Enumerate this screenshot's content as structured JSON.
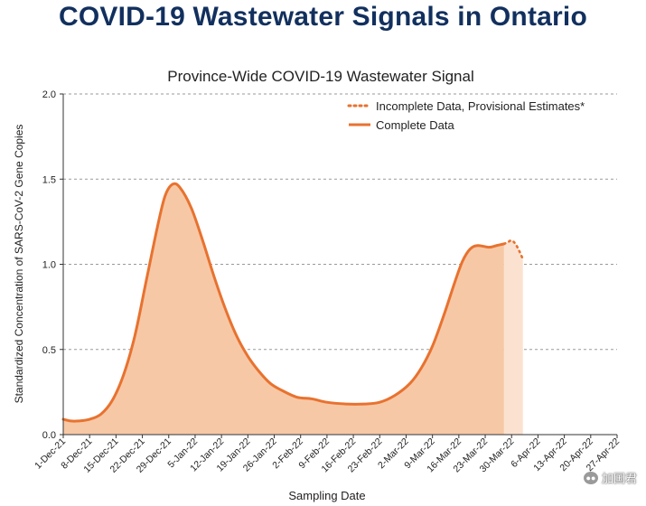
{
  "header": {
    "title": "COVID-19 Wastewater Signals in Ontario"
  },
  "watermark": {
    "text": "加国君",
    "icon": "wechat-icon"
  },
  "chart_data": {
    "type": "area",
    "title": "Province-Wide COVID-19 Wastewater Signal",
    "xlabel": "Sampling Date",
    "ylabel": "Standardized Concentration of SARS-CoV-2 Gene Copies",
    "ylim": [
      0,
      2.0
    ],
    "yticks": [
      0.0,
      0.5,
      1.0,
      1.5,
      2.0
    ],
    "ytick_labels": [
      "0.0",
      "0.5",
      "1.0",
      "1.5",
      "2.0"
    ],
    "grid": "horizontal-dashed",
    "legend_position": "top-right",
    "x_start": "1-Dec-21",
    "x_end": "27-Apr-22",
    "categories": [
      "1-Dec-21",
      "8-Dec-21",
      "15-Dec-21",
      "22-Dec-21",
      "29-Dec-21",
      "5-Jan-22",
      "12-Jan-22",
      "19-Jan-22",
      "26-Jan-22",
      "2-Feb-22",
      "9-Feb-22",
      "16-Feb-22",
      "23-Feb-22",
      "2-Mar-22",
      "9-Mar-22",
      "16-Mar-22",
      "23-Mar-22",
      "30-Mar-22",
      "6-Apr-22",
      "13-Apr-22",
      "20-Apr-22",
      "27-Apr-22"
    ],
    "colors": {
      "line": "#e8722f",
      "fill": "#f7c8a6",
      "provisional_fill": "#fbe2d0"
    },
    "series": [
      {
        "name": "Complete Data",
        "style": "solid",
        "points": [
          {
            "day": 0,
            "value": 0.09
          },
          {
            "day": 2,
            "value": 0.08
          },
          {
            "day": 4,
            "value": 0.08
          },
          {
            "day": 7,
            "value": 0.09
          },
          {
            "day": 10,
            "value": 0.12
          },
          {
            "day": 13,
            "value": 0.2
          },
          {
            "day": 16,
            "value": 0.35
          },
          {
            "day": 19,
            "value": 0.58
          },
          {
            "day": 22,
            "value": 0.9
          },
          {
            "day": 25,
            "value": 1.22
          },
          {
            "day": 27,
            "value": 1.4
          },
          {
            "day": 29,
            "value": 1.47
          },
          {
            "day": 31,
            "value": 1.45
          },
          {
            "day": 34,
            "value": 1.33
          },
          {
            "day": 37,
            "value": 1.14
          },
          {
            "day": 40,
            "value": 0.93
          },
          {
            "day": 43,
            "value": 0.74
          },
          {
            "day": 46,
            "value": 0.58
          },
          {
            "day": 49,
            "value": 0.46
          },
          {
            "day": 52,
            "value": 0.37
          },
          {
            "day": 55,
            "value": 0.3
          },
          {
            "day": 58,
            "value": 0.26
          },
          {
            "day": 62,
            "value": 0.22
          },
          {
            "day": 66,
            "value": 0.21
          },
          {
            "day": 70,
            "value": 0.19
          },
          {
            "day": 75,
            "value": 0.18
          },
          {
            "day": 80,
            "value": 0.18
          },
          {
            "day": 84,
            "value": 0.19
          },
          {
            "day": 88,
            "value": 0.23
          },
          {
            "day": 92,
            "value": 0.3
          },
          {
            "day": 95,
            "value": 0.39
          },
          {
            "day": 98,
            "value": 0.52
          },
          {
            "day": 101,
            "value": 0.7
          },
          {
            "day": 104,
            "value": 0.9
          },
          {
            "day": 106,
            "value": 1.02
          },
          {
            "day": 108,
            "value": 1.09
          },
          {
            "day": 110,
            "value": 1.11
          },
          {
            "day": 113,
            "value": 1.1
          },
          {
            "day": 115,
            "value": 1.11
          },
          {
            "day": 117,
            "value": 1.12
          }
        ]
      },
      {
        "name": "Incomplete Data, Provisional Estimates*",
        "style": "dotted",
        "points": [
          {
            "day": 117,
            "value": 1.12
          },
          {
            "day": 118,
            "value": 1.13
          },
          {
            "day": 119,
            "value": 1.14
          },
          {
            "day": 120,
            "value": 1.12
          },
          {
            "day": 121,
            "value": 1.08
          },
          {
            "day": 122,
            "value": 1.03
          }
        ]
      }
    ]
  }
}
